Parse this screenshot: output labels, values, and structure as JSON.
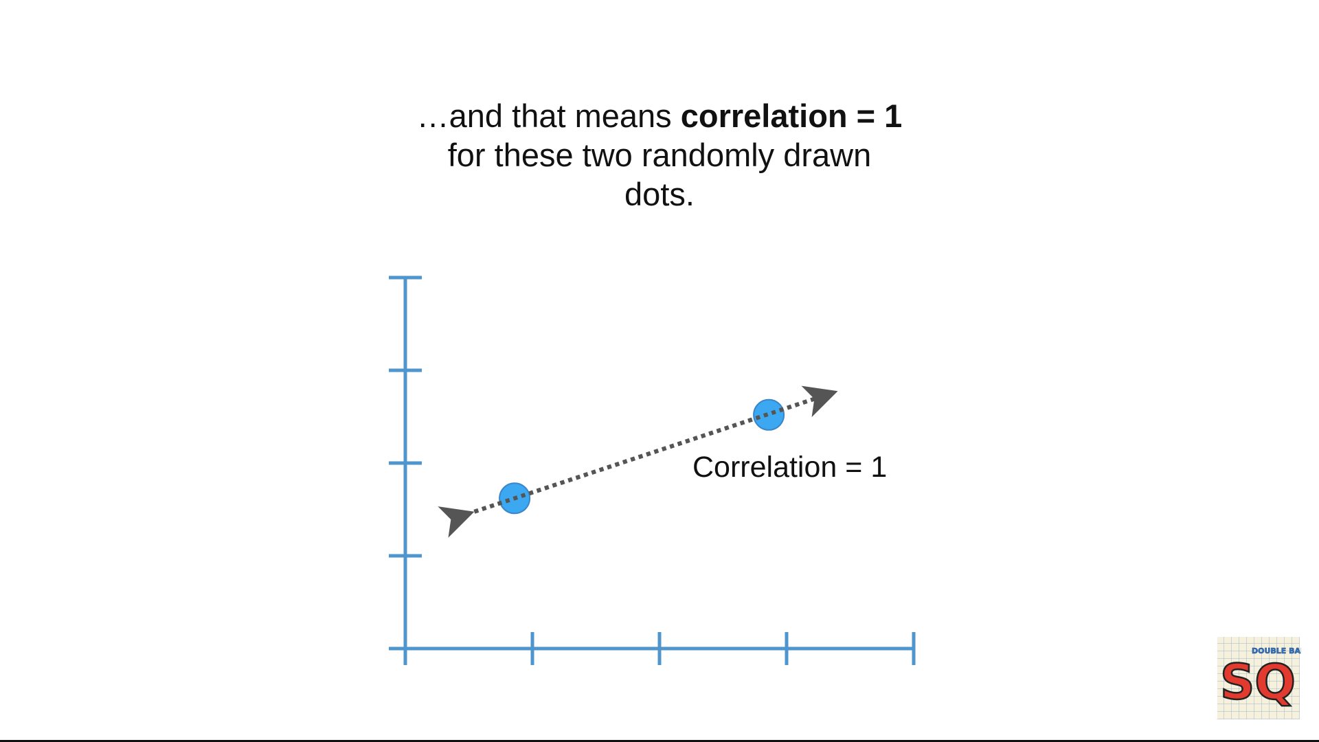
{
  "caption": {
    "line1_prefix": "…and that means ",
    "line1_bold": "correlation = 1",
    "line2": "for these two randomly drawn",
    "line3": "dots."
  },
  "chart_data": {
    "type": "scatter",
    "title": "",
    "xlabel": "",
    "ylabel": "",
    "xlim": [
      0,
      4
    ],
    "ylim": [
      0,
      4
    ],
    "x_ticks": [
      1,
      2,
      3,
      4
    ],
    "y_ticks": [
      1,
      2,
      3,
      4
    ],
    "tick_labels_shown": false,
    "grid": false,
    "points": [
      {
        "x": 0.86,
        "y": 1.62
      },
      {
        "x": 2.86,
        "y": 2.52
      }
    ],
    "fit_line": {
      "style": "dotted",
      "arrows": "both",
      "x": [
        0.42,
        3.28
      ],
      "y": [
        1.42,
        2.72
      ]
    },
    "annotation": "Correlation = 1",
    "colors": {
      "axis": "#4f96cf",
      "point_fill": "#3ca8f2",
      "point_stroke": "#3a86c8",
      "line": "#555555"
    }
  },
  "logo": {
    "text": "SQ!",
    "badge_text": "DOUBLE BAM!!"
  }
}
